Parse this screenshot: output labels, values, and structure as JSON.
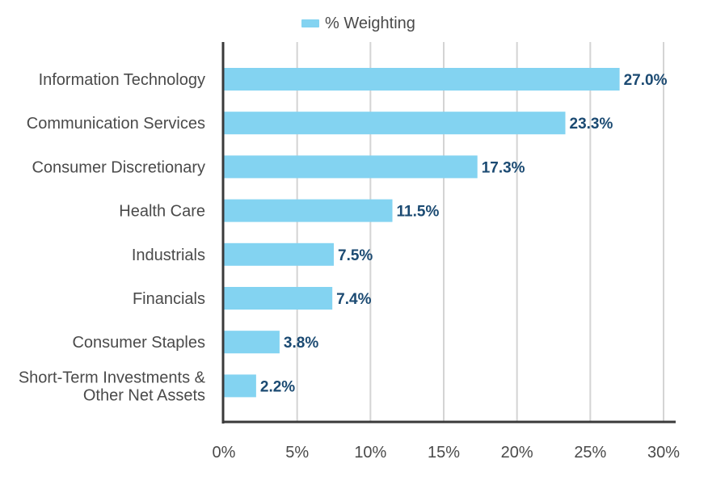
{
  "chart_data": {
    "type": "bar",
    "orientation": "horizontal",
    "categories": [
      "Information Technology",
      "Communication Services",
      "Consumer Discretionary",
      "Health Care",
      "Industrials",
      "Financials",
      "Consumer Staples",
      "Short-Term Investments & Other Net Assets"
    ],
    "category_lines": [
      [
        "Information Technology"
      ],
      [
        "Communication Services"
      ],
      [
        "Consumer Discretionary"
      ],
      [
        "Health Care"
      ],
      [
        "Industrials"
      ],
      [
        "Financials"
      ],
      [
        "Consumer Staples"
      ],
      [
        "Short-Term Investments &",
        "Other Net Assets"
      ]
    ],
    "series": [
      {
        "name": "% Weighting",
        "values": [
          27.0,
          23.3,
          17.3,
          11.5,
          7.5,
          7.4,
          3.8,
          2.2
        ],
        "data_labels": [
          "27.0%",
          "23.3%",
          "17.3%",
          "11.5%",
          "7.5%",
          "7.4%",
          "3.8%",
          "2.2%"
        ]
      }
    ],
    "xlim": [
      0,
      30
    ],
    "x_ticks": [
      0,
      5,
      10,
      15,
      20,
      25,
      30
    ],
    "x_tick_labels": [
      "0%",
      "5%",
      "10%",
      "15%",
      "20%",
      "25%",
      "30%"
    ],
    "grid": "vertical",
    "legend_position": "top-center",
    "colors": {
      "bar": "#83D3F1",
      "data_label": "#1B4A72",
      "axis": "#3a3a3a",
      "grid": "#d4d4d4",
      "text": "#4a4a4a"
    }
  }
}
